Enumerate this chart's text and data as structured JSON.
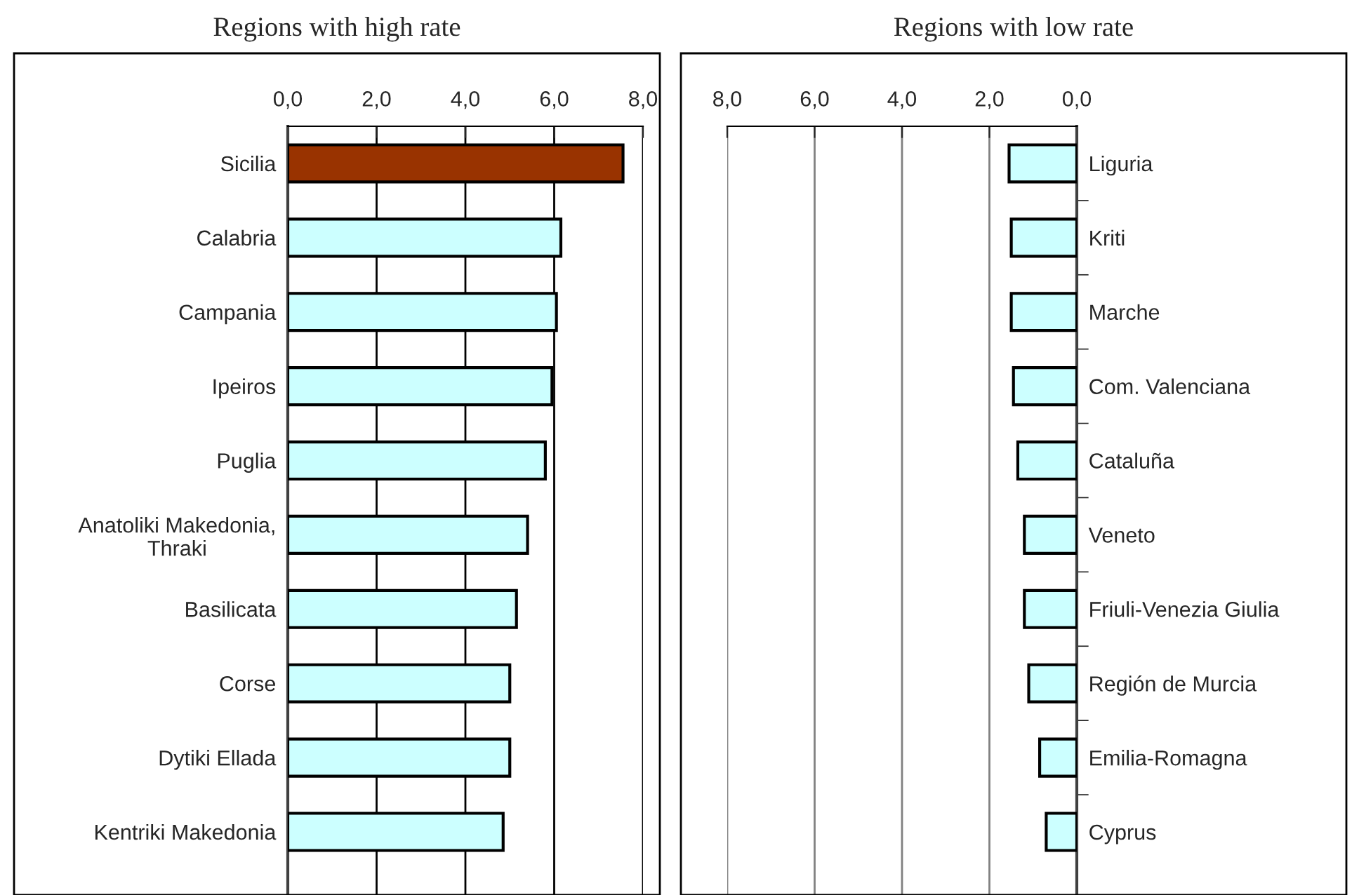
{
  "chart_data": [
    {
      "type": "bar",
      "orientation": "horizontal",
      "title": "Regions with high rate",
      "categories": [
        "Sicilia",
        "Calabria",
        "Campania",
        "Ipeiros",
        "Puglia",
        "Anatoliki Makedonia,\nThraki",
        "Basilicata",
        "Corse",
        "Dytiki Ellada",
        "Kentriki Makedonia"
      ],
      "values": [
        7.55,
        6.15,
        6.05,
        5.95,
        5.8,
        5.4,
        5.15,
        5.0,
        5.0,
        4.85
      ],
      "colors": [
        "#993300",
        "#ccffff",
        "#ccffff",
        "#ccffff",
        "#ccffff",
        "#ccffff",
        "#ccffff",
        "#ccffff",
        "#ccffff",
        "#ccffff"
      ],
      "xlim": [
        0,
        8
      ],
      "xticks": [
        {
          "value": 0,
          "label": "0,0"
        },
        {
          "value": 2,
          "label": "2,0"
        },
        {
          "value": 4,
          "label": "4,0"
        },
        {
          "value": 6,
          "label": "6,0"
        },
        {
          "value": 8,
          "label": "8,0"
        }
      ],
      "grid": "x"
    },
    {
      "type": "bar",
      "orientation": "horizontal",
      "title": "Regions with low rate",
      "categories": [
        "Liguria",
        "Kriti",
        "Marche",
        "Com. Valenciana",
        "Cataluña",
        "Veneto",
        "Friuli-Venezia Giulia",
        "Región de Murcia",
        "Emilia-Romagna",
        "Cyprus"
      ],
      "values": [
        1.55,
        1.5,
        1.5,
        1.45,
        1.35,
        1.2,
        1.2,
        1.1,
        0.85,
        0.7
      ],
      "colors": [
        "#ccffff",
        "#ccffff",
        "#ccffff",
        "#ccffff",
        "#ccffff",
        "#ccffff",
        "#ccffff",
        "#ccffff",
        "#ccffff",
        "#ccffff"
      ],
      "xlim": [
        8,
        0
      ],
      "xticks": [
        {
          "value": 8,
          "label": "8,0"
        },
        {
          "value": 6,
          "label": "6,0"
        },
        {
          "value": 4,
          "label": "4,0"
        },
        {
          "value": 2,
          "label": "2,0"
        },
        {
          "value": 0,
          "label": "0,0"
        }
      ],
      "grid": "x"
    }
  ]
}
